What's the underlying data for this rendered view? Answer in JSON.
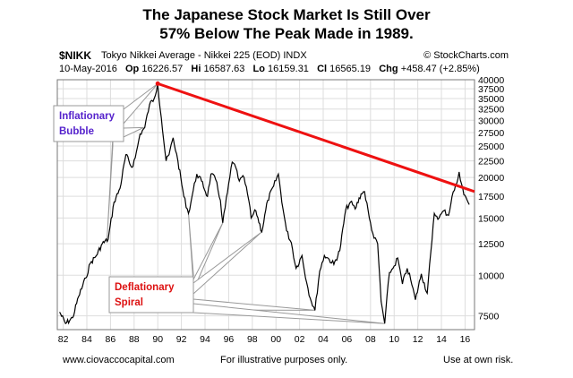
{
  "title_line1": "The Japanese Stock Market Is Still Over",
  "title_line2": "57% Below The  Peak Made in 1989.",
  "header": {
    "symbol": "$NIKK",
    "description": "Tokyo Nikkei Average - Nikkei 225 (EOD)  INDX",
    "brand": "© StockCharts.com",
    "date": "10-May-2016",
    "op_label": "Op",
    "op": "16226.57",
    "hi_label": "Hi",
    "hi": "16587.63",
    "lo_label": "Lo",
    "lo": "16159.31",
    "cl_label": "Cl",
    "cl": "16565.19",
    "chg_label": "Chg",
    "chg": "+458.47 (+2.85%)"
  },
  "footer": {
    "left": "www.ciovaccocapital.com",
    "middle": "For illustrative purposes only.",
    "right": "Use at own risk."
  },
  "colors": {
    "price_line": "#000000",
    "trend_line": "#ee1111",
    "bubble_text": "#5522cc",
    "spiral_text": "#dd1111",
    "callout_border": "#999999"
  },
  "chart_data": {
    "type": "line",
    "scale": "log",
    "ylim": [
      6800,
      40000
    ],
    "xlim": [
      1981.5,
      2016.8
    ],
    "y_ticks": [
      7500,
      10000,
      12500,
      15000,
      17500,
      20000,
      22500,
      25000,
      27500,
      30000,
      32500,
      35000,
      37500,
      40000
    ],
    "x_ticks": [
      "82",
      "84",
      "86",
      "88",
      "90",
      "92",
      "94",
      "96",
      "98",
      "00",
      "02",
      "04",
      "06",
      "08",
      "10",
      "12",
      "14",
      "16"
    ],
    "x_tick_years": [
      1982,
      1984,
      1986,
      1988,
      1990,
      1992,
      1994,
      1996,
      1998,
      2000,
      2002,
      2004,
      2006,
      2008,
      2010,
      2012,
      2014,
      2016
    ],
    "grid": true,
    "series": [
      {
        "x": [
          1981.7,
          1982.2,
          1982.8,
          1983.3,
          1983.9,
          1984.3,
          1984.8,
          1985.3,
          1985.8,
          1986.3,
          1986.8,
          1987.3,
          1987.8,
          1988.1,
          1988.5,
          1988.9,
          1989.3,
          1989.7,
          1989.99,
          1990.3,
          1990.7,
          1990.95,
          1991.3,
          1991.7,
          1992.2,
          1992.6,
          1992.9,
          1993.3,
          1993.7,
          1994.2,
          1994.5,
          1994.9,
          1995.3,
          1995.5,
          1995.9,
          1996.3,
          1996.6,
          1996.9,
          1997.3,
          1997.7,
          1997.9,
          1998.3,
          1998.8,
          1999.3,
          1999.8,
          2000.2,
          2000.6,
          2000.9,
          2001.3,
          2001.7,
          2002.2,
          2002.6,
          2002.9,
          2003.3,
          2003.7,
          2004.1,
          2004.5,
          2004.9,
          2005.4,
          2005.9,
          2006.3,
          2006.7,
          2007.2,
          2007.5,
          2007.9,
          2008.3,
          2008.6,
          2008.9,
          2009.2,
          2009.6,
          2009.9,
          2010.3,
          2010.7,
          2011.1,
          2011.4,
          2011.8,
          2012.3,
          2012.8,
          2013.2,
          2013.4,
          2013.8,
          2014.2,
          2014.6,
          2014.9,
          2015.3,
          2015.5,
          2015.9,
          2016.1,
          2016.35
        ],
        "y": [
          7700,
          7100,
          7400,
          8600,
          9800,
          10900,
          11500,
          12500,
          12900,
          16800,
          18500,
          23500,
          21500,
          23000,
          27200,
          28500,
          33500,
          35000,
          38900,
          30500,
          22500,
          23500,
          26500,
          22500,
          17500,
          15500,
          17500,
          20500,
          19500,
          17500,
          20500,
          19700,
          17000,
          14500,
          18000,
          22300,
          21500,
          19500,
          20000,
          17000,
          15000,
          15800,
          13600,
          17000,
          18800,
          20500,
          16000,
          13700,
          12600,
          10500,
          11500,
          9500,
          8500,
          7800,
          10300,
          11500,
          11200,
          10800,
          11900,
          15900,
          16800,
          16000,
          17800,
          18100,
          15000,
          13000,
          12500,
          8300,
          7100,
          10200,
          10500,
          11300,
          9400,
          10500,
          9700,
          8400,
          10100,
          8800,
          12800,
          15500,
          15000,
          15800,
          15300,
          17500,
          19200,
          20800,
          17700,
          17300,
          16500
        ]
      }
    ],
    "trendline": {
      "x": [
        1990.0,
        2016.8
      ],
      "y": [
        38900,
        18800
      ]
    },
    "annotations": [
      {
        "text": "Inflationary Bubble",
        "lines": [
          "Inflationary",
          "Bubble"
        ]
      },
      {
        "text": "Deflationary Spiral",
        "lines": [
          "Deflationary",
          "Spiral"
        ]
      }
    ]
  }
}
